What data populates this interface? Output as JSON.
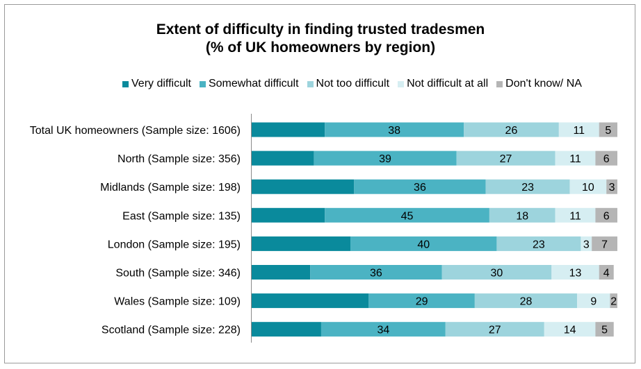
{
  "chart_data": {
    "type": "bar",
    "orientation": "horizontal",
    "stacked": true,
    "title": "Extent of difficulty in finding trusted tradesmen",
    "subtitle": "(% of UK homeowners by region)",
    "legend_position": "top",
    "categories": [
      "Total UK homeowners (Sample size: 1606)",
      "North (Sample size: 356)",
      "Midlands (Sample size: 198)",
      "East (Sample size: 135)",
      "London (Sample size: 195)",
      "South (Sample size: 346)",
      "Wales (Sample size: 109)",
      "Scotland (Sample size: 228)"
    ],
    "series": [
      {
        "name": "Very difficult",
        "color": "#0a8a9c",
        "values": [
          20,
          17,
          28,
          20,
          27,
          16,
          32,
          19
        ],
        "show_labels": false
      },
      {
        "name": "Somewhat difficult",
        "color": "#4bb3c3",
        "values": [
          38,
          39,
          36,
          45,
          40,
          36,
          29,
          34
        ],
        "show_labels": true
      },
      {
        "name": "Not too difficult",
        "color": "#9dd4dd",
        "values": [
          26,
          27,
          23,
          18,
          23,
          30,
          28,
          27
        ],
        "show_labels": true
      },
      {
        "name": "Not difficult at all",
        "color": "#d6eef2",
        "values": [
          11,
          11,
          10,
          11,
          3,
          13,
          9,
          14
        ],
        "show_labels": true
      },
      {
        "name": "Don't know/ NA",
        "color": "#b5b5b5",
        "values": [
          5,
          6,
          3,
          6,
          7,
          4,
          2,
          5
        ],
        "show_labels": true
      }
    ],
    "xlim": [
      0,
      100
    ],
    "grid": false
  }
}
